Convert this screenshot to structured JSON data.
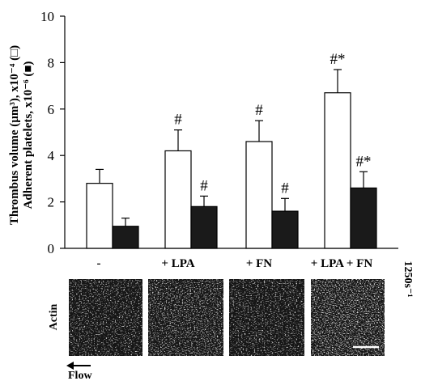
{
  "chart_data": {
    "type": "bar",
    "ylabel_line1": "Thrombus volume (µm³), x10⁻⁴ (□)",
    "ylabel_line2": "Adherent platelets, x10⁻⁶ (■)",
    "ylim": [
      0,
      10
    ],
    "yticks": [
      "0",
      "2",
      "4",
      "6",
      "8",
      "10"
    ],
    "ytick_values": [
      0,
      2,
      4,
      6,
      8,
      10
    ],
    "categories": [
      "-",
      "+ LPA",
      "+ FN",
      "+ LPA + FN"
    ],
    "series": [
      {
        "fill": "#ffffff",
        "values": [
          2.8,
          4.2,
          4.6,
          6.7
        ],
        "errors": [
          0.6,
          0.9,
          0.9,
          1.0
        ],
        "marks": [
          "",
          "#",
          "#",
          "#*"
        ]
      },
      {
        "fill": "#1a1a1a",
        "values": [
          0.95,
          1.8,
          1.6,
          2.6
        ],
        "errors": [
          0.35,
          0.45,
          0.55,
          0.7
        ],
        "marks": [
          "",
          "#",
          "#",
          "#*"
        ]
      }
    ],
    "shear_label": "1250s⁻¹",
    "grid": false
  },
  "images": {
    "row_label": "Actin",
    "flow_label": "Flow",
    "panel_count": 4
  }
}
